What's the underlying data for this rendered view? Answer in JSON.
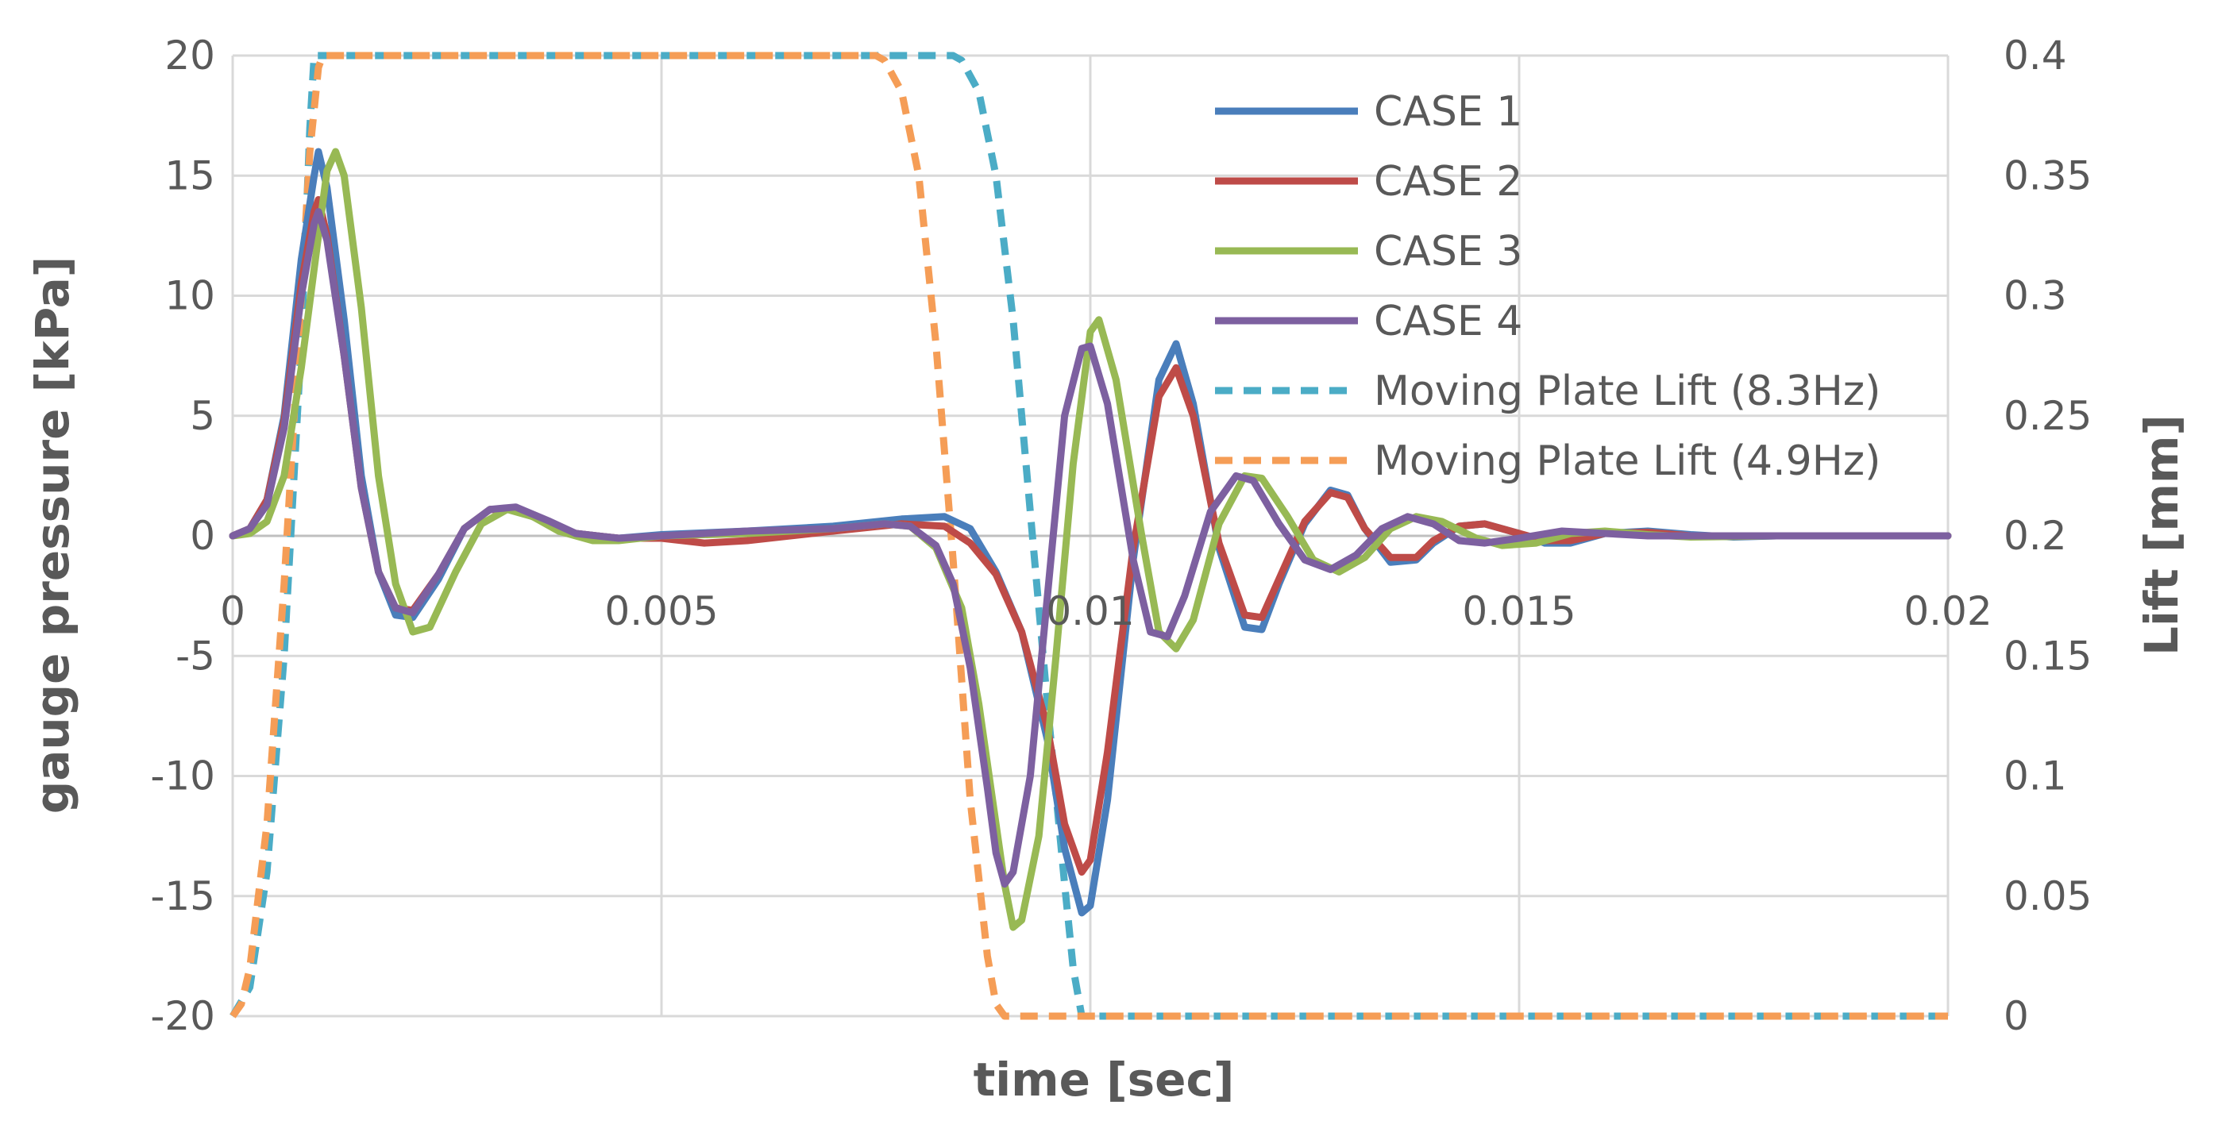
{
  "chart_data": {
    "type": "line",
    "xlabel": "time [sec]",
    "ylabel": "gauge pressure [kPa]",
    "y2label": "Lift [mm]",
    "xlim": [
      0,
      0.02
    ],
    "ylim": [
      -20,
      20
    ],
    "y2lim": [
      0,
      0.4
    ],
    "x_ticks": [
      "0",
      "0.005",
      "0.01",
      "0.015",
      "0.02"
    ],
    "y_ticks": [
      "20",
      "15",
      "10",
      "5",
      "0",
      "-5",
      "-10",
      "-15",
      "-20"
    ],
    "y2_ticks": [
      "0.4",
      "0.35",
      "0.3",
      "0.25",
      "0.2",
      "0.15",
      "0.1",
      "0.05",
      "0"
    ],
    "grid": true,
    "legend_position": "top-right",
    "series": [
      {
        "name": "CASE 1",
        "axis": "left",
        "color": "#4a7ebb",
        "style": "solid",
        "points": [
          [
            0,
            0
          ],
          [
            0.0002,
            0.3
          ],
          [
            0.0004,
            1.5
          ],
          [
            0.0006,
            5
          ],
          [
            0.0008,
            11.5
          ],
          [
            0.00095,
            15
          ],
          [
            0.001,
            16
          ],
          [
            0.0011,
            14.5
          ],
          [
            0.0013,
            9
          ],
          [
            0.0015,
            2.5
          ],
          [
            0.0017,
            -1.5
          ],
          [
            0.0019,
            -3.3
          ],
          [
            0.0021,
            -3.4
          ],
          [
            0.0024,
            -1.8
          ],
          [
            0.0027,
            0.3
          ],
          [
            0.003,
            1.1
          ],
          [
            0.0033,
            1.1
          ],
          [
            0.0037,
            0.5
          ],
          [
            0.004,
            0.1
          ],
          [
            0.0045,
            -0.1
          ],
          [
            0.005,
            0.05
          ],
          [
            0.006,
            0.2
          ],
          [
            0.007,
            0.4
          ],
          [
            0.0078,
            0.7
          ],
          [
            0.0083,
            0.8
          ],
          [
            0.0086,
            0.3
          ],
          [
            0.0089,
            -1.5
          ],
          [
            0.0092,
            -4
          ],
          [
            0.0095,
            -8.5
          ],
          [
            0.0097,
            -13
          ],
          [
            0.0099,
            -15.7
          ],
          [
            0.01,
            -15.4
          ],
          [
            0.0102,
            -11
          ],
          [
            0.0105,
            -1
          ],
          [
            0.0108,
            6.5
          ],
          [
            0.011,
            8
          ],
          [
            0.0112,
            5.5
          ],
          [
            0.0115,
            -0.5
          ],
          [
            0.0118,
            -3.8
          ],
          [
            0.012,
            -3.9
          ],
          [
            0.0122,
            -2
          ],
          [
            0.0125,
            0.5
          ],
          [
            0.0128,
            1.9
          ],
          [
            0.013,
            1.7
          ],
          [
            0.0132,
            0.3
          ],
          [
            0.0135,
            -1.1
          ],
          [
            0.0138,
            -1
          ],
          [
            0.014,
            -0.3
          ],
          [
            0.0143,
            0.4
          ],
          [
            0.0146,
            0.5
          ],
          [
            0.015,
            0.1
          ],
          [
            0.0153,
            -0.3
          ],
          [
            0.0156,
            -0.3
          ],
          [
            0.016,
            0.1
          ],
          [
            0.0165,
            0.2
          ],
          [
            0.017,
            0.05
          ],
          [
            0.0175,
            -0.05
          ],
          [
            0.018,
            0
          ],
          [
            0.019,
            0
          ],
          [
            0.02,
            0
          ]
        ]
      },
      {
        "name": "CASE 2",
        "axis": "left",
        "color": "#be4b48",
        "style": "solid",
        "points": [
          [
            0,
            0
          ],
          [
            0.0002,
            0.3
          ],
          [
            0.0004,
            1.5
          ],
          [
            0.0006,
            4.8
          ],
          [
            0.0008,
            10.5
          ],
          [
            0.00095,
            13.5
          ],
          [
            0.001,
            14
          ],
          [
            0.0011,
            12.5
          ],
          [
            0.0013,
            7.5
          ],
          [
            0.0015,
            2
          ],
          [
            0.0017,
            -1.5
          ],
          [
            0.0019,
            -3
          ],
          [
            0.0021,
            -3.1
          ],
          [
            0.0024,
            -1.6
          ],
          [
            0.0027,
            0.3
          ],
          [
            0.003,
            1.1
          ],
          [
            0.0033,
            1.1
          ],
          [
            0.0037,
            0.5
          ],
          [
            0.004,
            0.1
          ],
          [
            0.0045,
            -0.1
          ],
          [
            0.005,
            -0.1
          ],
          [
            0.0055,
            -0.3
          ],
          [
            0.006,
            -0.2
          ],
          [
            0.007,
            0.2
          ],
          [
            0.0078,
            0.5
          ],
          [
            0.0083,
            0.4
          ],
          [
            0.0086,
            -0.3
          ],
          [
            0.0089,
            -1.6
          ],
          [
            0.0092,
            -4
          ],
          [
            0.0095,
            -8
          ],
          [
            0.0097,
            -12
          ],
          [
            0.0099,
            -14
          ],
          [
            0.01,
            -13.5
          ],
          [
            0.0102,
            -9
          ],
          [
            0.0105,
            -0.5
          ],
          [
            0.0108,
            5.8
          ],
          [
            0.011,
            7
          ],
          [
            0.0112,
            5
          ],
          [
            0.0115,
            -0.3
          ],
          [
            0.0118,
            -3.3
          ],
          [
            0.012,
            -3.4
          ],
          [
            0.0122,
            -1.8
          ],
          [
            0.0125,
            0.6
          ],
          [
            0.0128,
            1.8
          ],
          [
            0.013,
            1.6
          ],
          [
            0.0132,
            0.3
          ],
          [
            0.0135,
            -0.9
          ],
          [
            0.0138,
            -0.9
          ],
          [
            0.014,
            -0.2
          ],
          [
            0.0143,
            0.4
          ],
          [
            0.0146,
            0.5
          ],
          [
            0.015,
            0.1
          ],
          [
            0.0153,
            -0.2
          ],
          [
            0.0156,
            -0.2
          ],
          [
            0.016,
            0.1
          ],
          [
            0.0165,
            0.15
          ],
          [
            0.017,
            0
          ],
          [
            0.018,
            0
          ],
          [
            0.02,
            0
          ]
        ]
      },
      {
        "name": "CASE 3",
        "axis": "left",
        "color": "#98b954",
        "style": "solid",
        "points": [
          [
            0,
            0
          ],
          [
            0.0002,
            0.1
          ],
          [
            0.0004,
            0.6
          ],
          [
            0.0006,
            2.5
          ],
          [
            0.0008,
            7
          ],
          [
            0.001,
            12.5
          ],
          [
            0.0011,
            15.2
          ],
          [
            0.0012,
            16
          ],
          [
            0.0013,
            15
          ],
          [
            0.0015,
            9.5
          ],
          [
            0.0017,
            2.5
          ],
          [
            0.0019,
            -2
          ],
          [
            0.0021,
            -4
          ],
          [
            0.0023,
            -3.8
          ],
          [
            0.0026,
            -1.5
          ],
          [
            0.0029,
            0.5
          ],
          [
            0.0032,
            1.1
          ],
          [
            0.0035,
            0.8
          ],
          [
            0.0038,
            0.2
          ],
          [
            0.0042,
            -0.2
          ],
          [
            0.0045,
            -0.2
          ],
          [
            0.005,
            0
          ],
          [
            0.006,
            0.1
          ],
          [
            0.007,
            0.3
          ],
          [
            0.0076,
            0.5
          ],
          [
            0.0079,
            0.4
          ],
          [
            0.0082,
            -0.5
          ],
          [
            0.0085,
            -3
          ],
          [
            0.0087,
            -7
          ],
          [
            0.0089,
            -12
          ],
          [
            0.009,
            -14.5
          ],
          [
            0.0091,
            -16.3
          ],
          [
            0.0092,
            -16
          ],
          [
            0.0094,
            -12.5
          ],
          [
            0.0096,
            -5
          ],
          [
            0.0098,
            3
          ],
          [
            0.01,
            8.5
          ],
          [
            0.0101,
            9
          ],
          [
            0.0103,
            6.5
          ],
          [
            0.0106,
            0
          ],
          [
            0.0108,
            -4
          ],
          [
            0.011,
            -4.7
          ],
          [
            0.0112,
            -3.5
          ],
          [
            0.0115,
            0.5
          ],
          [
            0.0118,
            2.5
          ],
          [
            0.012,
            2.4
          ],
          [
            0.0123,
            0.8
          ],
          [
            0.0126,
            -1
          ],
          [
            0.0129,
            -1.5
          ],
          [
            0.0132,
            -0.9
          ],
          [
            0.0135,
            0.3
          ],
          [
            0.0138,
            0.8
          ],
          [
            0.0141,
            0.6
          ],
          [
            0.0145,
            -0.1
          ],
          [
            0.0148,
            -0.4
          ],
          [
            0.0152,
            -0.3
          ],
          [
            0.0156,
            0.1
          ],
          [
            0.016,
            0.2
          ],
          [
            0.0165,
            0.05
          ],
          [
            0.017,
            -0.05
          ],
          [
            0.018,
            0
          ],
          [
            0.02,
            0
          ]
        ]
      },
      {
        "name": "CASE 4",
        "axis": "left",
        "color": "#7d60a0",
        "style": "solid",
        "points": [
          [
            0,
            0
          ],
          [
            0.0002,
            0.3
          ],
          [
            0.0004,
            1.3
          ],
          [
            0.0006,
            4.5
          ],
          [
            0.0008,
            10
          ],
          [
            0.00095,
            13
          ],
          [
            0.001,
            13.5
          ],
          [
            0.0011,
            12.3
          ],
          [
            0.0013,
            7.5
          ],
          [
            0.0015,
            2
          ],
          [
            0.0017,
            -1.5
          ],
          [
            0.0019,
            -3
          ],
          [
            0.0021,
            -3.2
          ],
          [
            0.0024,
            -1.6
          ],
          [
            0.0027,
            0.3
          ],
          [
            0.003,
            1.1
          ],
          [
            0.0033,
            1.2
          ],
          [
            0.0037,
            0.6
          ],
          [
            0.004,
            0.1
          ],
          [
            0.0045,
            -0.1
          ],
          [
            0.005,
            0
          ],
          [
            0.006,
            0.2
          ],
          [
            0.007,
            0.3
          ],
          [
            0.0076,
            0.5
          ],
          [
            0.0079,
            0.4
          ],
          [
            0.0082,
            -0.4
          ],
          [
            0.0084,
            -2
          ],
          [
            0.0086,
            -5.5
          ],
          [
            0.0088,
            -10.5
          ],
          [
            0.0089,
            -13.2
          ],
          [
            0.009,
            -14.5
          ],
          [
            0.0091,
            -14
          ],
          [
            0.0093,
            -10
          ],
          [
            0.0095,
            -2.5
          ],
          [
            0.0097,
            5
          ],
          [
            0.0099,
            7.8
          ],
          [
            0.01,
            7.9
          ],
          [
            0.0102,
            5.5
          ],
          [
            0.0105,
            -1
          ],
          [
            0.0107,
            -4
          ],
          [
            0.0109,
            -4.2
          ],
          [
            0.0111,
            -2.5
          ],
          [
            0.0114,
            1
          ],
          [
            0.0117,
            2.5
          ],
          [
            0.0119,
            2.3
          ],
          [
            0.0122,
            0.5
          ],
          [
            0.0125,
            -1
          ],
          [
            0.0128,
            -1.4
          ],
          [
            0.0131,
            -0.8
          ],
          [
            0.0134,
            0.3
          ],
          [
            0.0137,
            0.8
          ],
          [
            0.014,
            0.5
          ],
          [
            0.0143,
            -0.2
          ],
          [
            0.0146,
            -0.3
          ],
          [
            0.015,
            -0.1
          ],
          [
            0.0155,
            0.2
          ],
          [
            0.016,
            0.1
          ],
          [
            0.0165,
            0
          ],
          [
            0.017,
            0
          ],
          [
            0.02,
            0
          ]
        ]
      },
      {
        "name": "Moving Plate Lift (8.3Hz)",
        "axis": "right",
        "color": "#4bacc6",
        "style": "dashed",
        "points": [
          [
            0,
            0
          ],
          [
            0.0002,
            0.012
          ],
          [
            0.0004,
            0.06
          ],
          [
            0.0006,
            0.15
          ],
          [
            0.0008,
            0.28
          ],
          [
            0.0009,
            0.37
          ],
          [
            0.00095,
            0.4
          ],
          [
            0.0084,
            0.4
          ],
          [
            0.0085,
            0.398
          ],
          [
            0.0087,
            0.385
          ],
          [
            0.0089,
            0.35
          ],
          [
            0.0091,
            0.29
          ],
          [
            0.0093,
            0.21
          ],
          [
            0.0095,
            0.13
          ],
          [
            0.0097,
            0.055
          ],
          [
            0.0098,
            0.02
          ],
          [
            0.0099,
            0
          ],
          [
            0.02,
            0
          ]
        ]
      },
      {
        "name": "Moving Plate Lift (4.9Hz)",
        "axis": "right",
        "color": "#f59d56",
        "style": "dashed",
        "points": [
          [
            0,
            0
          ],
          [
            0.0001,
            0.005
          ],
          [
            0.0002,
            0.02
          ],
          [
            0.0004,
            0.08
          ],
          [
            0.0006,
            0.18
          ],
          [
            0.0008,
            0.3
          ],
          [
            0.0009,
            0.36
          ],
          [
            0.001,
            0.395
          ],
          [
            0.00105,
            0.4
          ],
          [
            0.0075,
            0.4
          ],
          [
            0.0076,
            0.398
          ],
          [
            0.0078,
            0.385
          ],
          [
            0.008,
            0.35
          ],
          [
            0.0082,
            0.28
          ],
          [
            0.0084,
            0.19
          ],
          [
            0.0086,
            0.09
          ],
          [
            0.0088,
            0.025
          ],
          [
            0.0089,
            0.005
          ],
          [
            0.009,
            0
          ],
          [
            0.02,
            0
          ]
        ]
      }
    ]
  }
}
